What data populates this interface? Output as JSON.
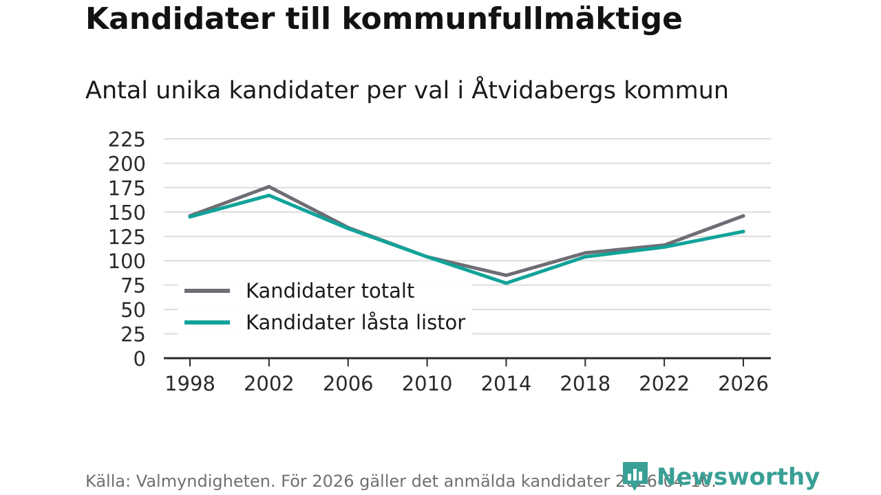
{
  "title": "Kandidater till kommunfullmäktige",
  "subtitle": "Antal unika kandidater per val i Åtvidabergs kommun",
  "source": "Källa: Valmyndigheten. För 2026 gäller det anmälda kandidater 2026-04-10.",
  "brand": {
    "name": "Newsworthy",
    "icon": "newsworthy-logo-icon",
    "color": "#3aa096"
  },
  "chart_data": {
    "type": "line",
    "title": "Kandidater till kommunfullmäktige",
    "subtitle": "Antal unika kandidater per val i Åtvidabergs kommun",
    "xlabel": "",
    "ylabel": "",
    "x": [
      "1998",
      "2002",
      "2006",
      "2010",
      "2014",
      "2018",
      "2022",
      "2026"
    ],
    "yticks": [
      "0",
      "25",
      "50",
      "75",
      "100",
      "125",
      "150",
      "175",
      "200",
      "225"
    ],
    "ylim": [
      0,
      225
    ],
    "grid": true,
    "legend_position": "bottom-left",
    "series": [
      {
        "name": "Kandidater totalt",
        "color": "#6e6d74",
        "values": [
          146,
          176,
          134,
          104,
          85,
          108,
          116,
          146
        ]
      },
      {
        "name": "Kandidater låsta listor",
        "color": "#10a39a",
        "values": [
          145,
          167,
          133,
          104,
          77,
          104,
          114,
          130
        ]
      }
    ]
  }
}
